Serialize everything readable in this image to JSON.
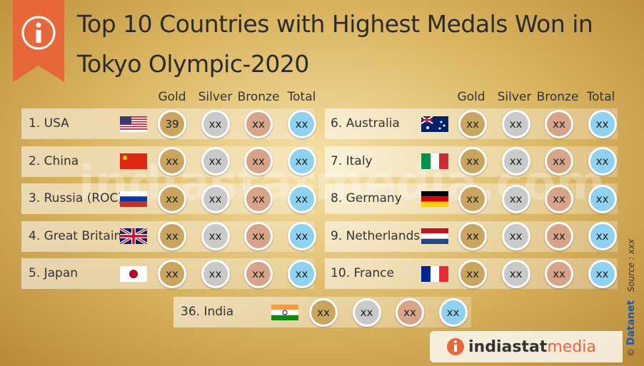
{
  "header": {
    "title": [
      "Top 10 Countries with Highest Medals Won in",
      "Tokyo Olympic-2020"
    ]
  },
  "columns": [
    "Gold",
    "Silver",
    "Bronze",
    "Total"
  ],
  "rows": [
    {
      "name": "1. USA",
      "medals": [
        39,
        "xx",
        "xx",
        "xx"
      ]
    },
    {
      "name": "2. China",
      "medals": [
        "xx",
        "xx",
        "xx",
        "xx"
      ]
    },
    {
      "name": "3. Russia (ROC)",
      "medals": [
        "xx",
        "xx",
        "xx",
        "xx"
      ]
    },
    {
      "name": "4. Great Britain",
      "medals": [
        "xx",
        "xx",
        "xx",
        "xx"
      ]
    },
    {
      "name": "5. Japan",
      "medals": [
        "xx",
        "xx",
        "xx",
        "xx"
      ]
    },
    {
      "name": "6. Australia",
      "medals": [
        "xx",
        "xx",
        "xx",
        "xx"
      ]
    },
    {
      "name": "7. Italy",
      "medals": [
        "xx",
        "xx",
        "xx",
        "xx"
      ]
    },
    {
      "name": "8. Germany",
      "medals": [
        "xx",
        "xx",
        "xx",
        "xx"
      ]
    },
    {
      "name": "9. Netherlands",
      "medals": [
        "xx",
        "xx",
        "xx",
        "xx"
      ]
    },
    {
      "name": "10. France",
      "medals": [
        "xx",
        "xx",
        "xx",
        "xx"
      ]
    }
  ],
  "india": {
    "name": "36. India",
    "medals": [
      "xx",
      "xx",
      "xx",
      "xx"
    ]
  },
  "watermark": "indiastatmedia.com",
  "footer": {
    "logo_a": "indiastat",
    "logo_b": "media",
    "copyright": "©",
    "brand": "Datanet",
    "source": "Source : xxx"
  }
}
